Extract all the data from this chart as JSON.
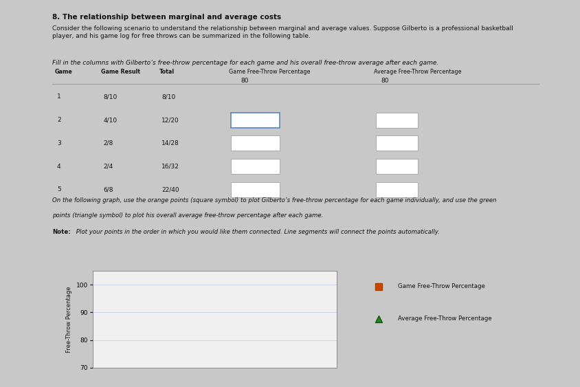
{
  "title": "8. The relationship between marginal and average costs",
  "intro_text": "Consider the following scenario to understand the relationship between marginal and average values. Suppose Gilberto is a professional basketball\nplayer, and his game log for free throws can be summarized in the following table.",
  "fill_text": "Fill in the columns with Gilberto’s free-throw percentage for each game and his overall free-throw average after each game.",
  "table": {
    "col_headers": [
      "Game",
      "Game Result",
      "Total",
      "Game Free-Throw Percentage",
      "Average Free-Throw Percentage"
    ],
    "rows": [
      [
        "1",
        "8/10",
        "8/10"
      ],
      [
        "2",
        "4/10",
        "12/20"
      ],
      [
        "3",
        "2/8",
        "14/28"
      ],
      [
        "4",
        "2/4",
        "16/32"
      ],
      [
        "5",
        "6/8",
        "22/40"
      ]
    ],
    "game1_pct": "80",
    "game1_avg": "80",
    "row_colors": [
      "#c8c8c8",
      "#d0d0d0",
      "#c8c8c8",
      "#d0d0d0",
      "#c8c8c8"
    ]
  },
  "graph_note_text_line1": "On the following graph, use the orange points (square symbol) to plot Gilberto’s free-throw percentage for each game individually, and use the green",
  "graph_note_text_line2": "points (triangle symbol) to plot his overall average free-throw percentage after each game.",
  "plot_note_bold": "Note:",
  "plot_note_rest": " Plot your points in the order in which you would like them connected. Line segments will connect the points automatically.",
  "graph": {
    "ylabel": "Free-Throw Percentage",
    "ylim_min": 70,
    "ylim_max": 105,
    "yticks": [
      70,
      80,
      90,
      100
    ],
    "xlim_min": 0,
    "xlim_max": 6,
    "grid_color": "#c8d4e8",
    "plot_bg": "#f0f0f0",
    "frame_bg": "#e8e8e8",
    "orange_color": "#cc4400",
    "green_color": "#228822",
    "legend_orange_label": "Game Free-Throw Percentage",
    "legend_green_label": "Average Free-Throw Percentage"
  },
  "page_bg": "#c8c8c8",
  "content_bg": "#d8d8d8",
  "text_color": "#111111",
  "small_text_color": "#333333"
}
